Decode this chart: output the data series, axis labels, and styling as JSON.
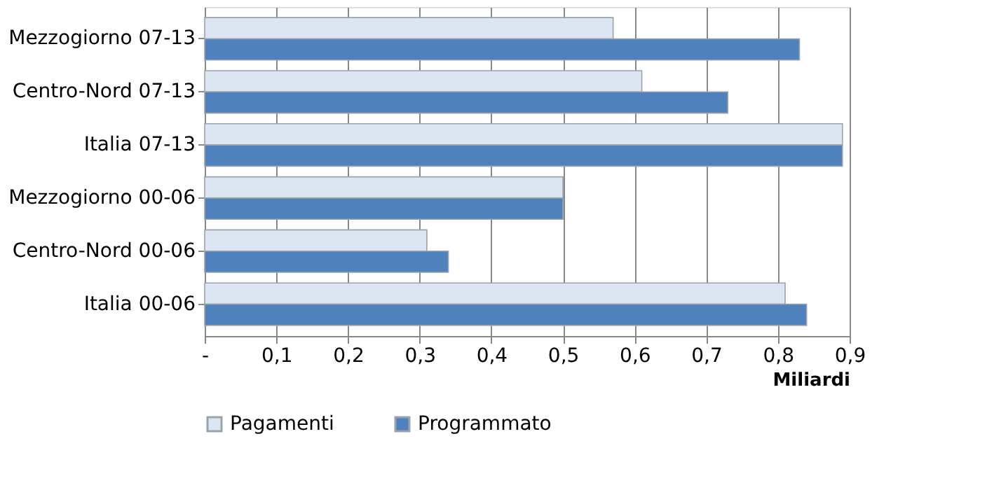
{
  "chart_data": {
    "type": "bar",
    "orientation": "horizontal",
    "xlabel": "Miliardi",
    "categories": [
      "Mezzogiorno 07-13",
      "Centro-Nord 07-13",
      "Italia 07-13",
      "Mezzogiorno 00-06",
      "Centro-Nord 00-06",
      "Italia 00-06"
    ],
    "series": [
      {
        "name": "Pagamenti",
        "color": "#dce6f2",
        "values": [
          0.57,
          0.61,
          0.89,
          0.5,
          0.31,
          0.81
        ]
      },
      {
        "name": "Programmato",
        "color": "#4f81bd",
        "values": [
          0.83,
          0.73,
          0.89,
          0.5,
          0.34,
          0.84
        ]
      }
    ],
    "xlim": [
      0,
      0.9
    ],
    "xticks": [
      {
        "value": 0,
        "label": "-"
      },
      {
        "value": 0.1,
        "label": "0,1"
      },
      {
        "value": 0.2,
        "label": "0,2"
      },
      {
        "value": 0.3,
        "label": "0,3"
      },
      {
        "value": 0.4,
        "label": "0,4"
      },
      {
        "value": 0.5,
        "label": "0,5"
      },
      {
        "value": 0.6,
        "label": "0,6"
      },
      {
        "value": 0.7,
        "label": "0,7"
      },
      {
        "value": 0.8,
        "label": "0,8"
      },
      {
        "value": 0.9,
        "label": "0,9"
      }
    ],
    "grid": "x",
    "legend": "bottom"
  }
}
